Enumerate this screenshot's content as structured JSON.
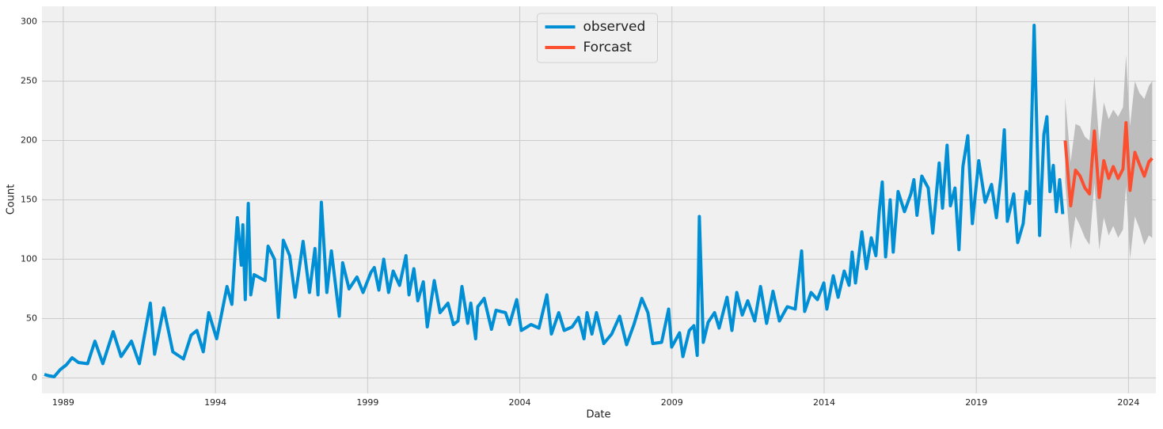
{
  "chart_data": {
    "type": "line",
    "xlabel": "Date",
    "ylabel": "Count",
    "xlim": [
      1988.3,
      2024.9
    ],
    "ylim": [
      -13,
      313
    ],
    "xticks": [
      1989,
      1994,
      1999,
      2004,
      2009,
      2014,
      2019,
      2024
    ],
    "yticks": [
      0,
      50,
      100,
      150,
      200,
      250,
      300
    ],
    "grid": true,
    "legend": "upper center",
    "series": [
      {
        "name": "observed",
        "color": "#008fd5",
        "x": [
          1988.38,
          1988.5,
          1988.7,
          1988.9,
          1989.1,
          1989.29,
          1989.5,
          1989.8,
          1990.04,
          1990.3,
          1990.64,
          1990.9,
          1991.24,
          1991.5,
          1991.86,
          1992.0,
          1992.3,
          1992.6,
          1992.95,
          1993.2,
          1993.39,
          1993.6,
          1993.78,
          1994.04,
          1994.38,
          1994.54,
          1994.72,
          1994.85,
          1994.9,
          1994.98,
          1995.08,
          1995.16,
          1995.27,
          1995.63,
          1995.73,
          1995.94,
          1996.07,
          1996.23,
          1996.44,
          1996.62,
          1996.88,
          1997.09,
          1997.27,
          1997.37,
          1997.48,
          1997.66,
          1997.81,
          1998.07,
          1998.18,
          1998.39,
          1998.65,
          1998.85,
          1999.11,
          1999.22,
          1999.37,
          1999.53,
          1999.69,
          1999.84,
          2000.05,
          2000.26,
          2000.36,
          2000.52,
          2000.65,
          2000.83,
          2000.96,
          2001.19,
          2001.38,
          2001.64,
          2001.82,
          2001.97,
          2002.1,
          2002.29,
          2002.39,
          2002.55,
          2002.62,
          2002.83,
          2003.07,
          2003.22,
          2003.53,
          2003.66,
          2003.9,
          2004.05,
          2004.37,
          2004.63,
          2004.89,
          2005.04,
          2005.28,
          2005.46,
          2005.72,
          2005.93,
          2006.11,
          2006.21,
          2006.37,
          2006.52,
          2006.76,
          2007.02,
          2007.28,
          2007.51,
          2007.75,
          2008.01,
          2008.21,
          2008.37,
          2008.66,
          2008.89,
          2008.99,
          2009.25,
          2009.36,
          2009.57,
          2009.72,
          2009.83,
          2009.9,
          2010.03,
          2010.19,
          2010.4,
          2010.55,
          2010.81,
          2010.97,
          2011.13,
          2011.31,
          2011.49,
          2011.72,
          2011.91,
          2012.11,
          2012.32,
          2012.53,
          2012.79,
          2013.05,
          2013.26,
          2013.36,
          2013.57,
          2013.78,
          2013.99,
          2014.09,
          2014.3,
          2014.46,
          2014.66,
          2014.82,
          2014.92,
          2015.03,
          2015.24,
          2015.39,
          2015.55,
          2015.7,
          2015.81,
          2015.91,
          2016.02,
          2016.17,
          2016.27,
          2016.43,
          2016.64,
          2016.85,
          2016.95,
          2017.05,
          2017.21,
          2017.42,
          2017.57,
          2017.78,
          2017.89,
          2018.04,
          2018.15,
          2018.3,
          2018.43,
          2018.56,
          2018.72,
          2018.87,
          2019.08,
          2019.29,
          2019.5,
          2019.66,
          2019.81,
          2019.92,
          2020.02,
          2020.23,
          2020.36,
          2020.54,
          2020.64,
          2020.75,
          2020.9,
          2021.08,
          2021.22,
          2021.32,
          2021.42,
          2021.53,
          2021.63,
          2021.74,
          2021.84
        ],
        "values": [
          3,
          2,
          1,
          7,
          11,
          17,
          13,
          12,
          31,
          12,
          39,
          18,
          31,
          12,
          63,
          20,
          59,
          22,
          16,
          36,
          40,
          22,
          55,
          33,
          77,
          62,
          135,
          95,
          129,
          66,
          147,
          70,
          87,
          82,
          111,
          100,
          51,
          116,
          103,
          68,
          115,
          72,
          109,
          70,
          148,
          72,
          107,
          52,
          97,
          75,
          85,
          72,
          89,
          93,
          74,
          100,
          72,
          90,
          78,
          103,
          70,
          92,
          65,
          81,
          43,
          82,
          55,
          63,
          45,
          48,
          77,
          46,
          63,
          33,
          60,
          67,
          41,
          57,
          55,
          45,
          66,
          40,
          45,
          42,
          70,
          37,
          55,
          40,
          43,
          51,
          33,
          55,
          37,
          55,
          29,
          37,
          52,
          28,
          45,
          67,
          55,
          29,
          30,
          58,
          26,
          38,
          18,
          40,
          44,
          19,
          136,
          30,
          47,
          55,
          42,
          68,
          40,
          72,
          53,
          65,
          48,
          77,
          46,
          73,
          48,
          60,
          58,
          107,
          56,
          72,
          66,
          80,
          58,
          86,
          68,
          90,
          78,
          106,
          80,
          123,
          92,
          118,
          103,
          140,
          165,
          102,
          150,
          106,
          157,
          140,
          155,
          167,
          137,
          170,
          160,
          122,
          181,
          143,
          196,
          145,
          160,
          108,
          178,
          204,
          130,
          183,
          148,
          163,
          135,
          170,
          209,
          132,
          155,
          114,
          130,
          157,
          147,
          297,
          120,
          205,
          220,
          157,
          179,
          140,
          167,
          138
        ]
      },
      {
        "name": "Forcast",
        "color": "#fc4f30",
        "band_color": "#bdbdbd",
        "x": [
          2021.92,
          2022.1,
          2022.26,
          2022.41,
          2022.57,
          2022.72,
          2022.88,
          2023.04,
          2023.19,
          2023.35,
          2023.5,
          2023.66,
          2023.82,
          2023.92,
          2024.05,
          2024.21,
          2024.36,
          2024.52,
          2024.67,
          2024.78
        ],
        "values": [
          200,
          145,
          175,
          170,
          160,
          155,
          208,
          152,
          183,
          168,
          178,
          168,
          176,
          215,
          158,
          190,
          180,
          170,
          182,
          185
        ],
        "lower": [
          165,
          108,
          136,
          128,
          118,
          112,
          164,
          108,
          135,
          120,
          128,
          118,
          125,
          162,
          100,
          136,
          126,
          112,
          120,
          118
        ],
        "upper": [
          236,
          182,
          214,
          212,
          203,
          200,
          254,
          198,
          232,
          218,
          226,
          220,
          228,
          272,
          212,
          250,
          240,
          235,
          246,
          250
        ]
      }
    ]
  }
}
